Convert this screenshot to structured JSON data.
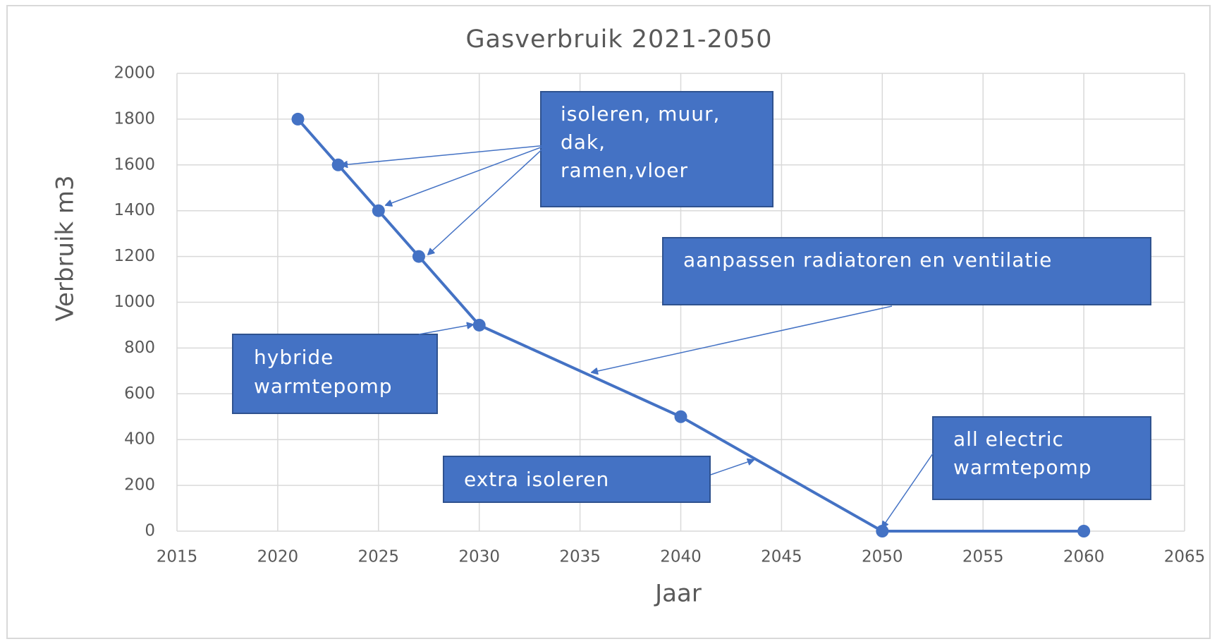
{
  "chart_data": {
    "type": "line",
    "title": "Gasverbruik 2021-2050",
    "x_label": "Jaar",
    "y_label": "Verbruik m3",
    "series": [
      {
        "name": "Verbruik",
        "color": "#4472c4",
        "x": [
          2021,
          2023,
          2025,
          2027,
          2030,
          2040,
          2050,
          2060
        ],
        "values": [
          1800,
          1600,
          1400,
          1200,
          900,
          500,
          0,
          0
        ]
      }
    ],
    "xlim": [
      2015,
      2065
    ],
    "xticks": [
      2015,
      2020,
      2025,
      2030,
      2035,
      2040,
      2045,
      2050,
      2055,
      2060,
      2065
    ],
    "ylim": [
      0,
      2000
    ],
    "yticks": [
      0,
      200,
      400,
      600,
      800,
      1000,
      1200,
      1400,
      1600,
      1800,
      2000
    ],
    "grid": true,
    "annotations": [
      {
        "lines": [
          "isoleren, muur,",
          "dak,",
          "ramen,vloer"
        ]
      },
      {
        "lines": [
          "aanpassen radiatoren en ventilatie"
        ]
      },
      {
        "lines": [
          "hybride",
          "warmtepomp"
        ]
      },
      {
        "lines": [
          "extra isoleren"
        ]
      },
      {
        "lines": [
          "all electric",
          "warmtepomp"
        ]
      }
    ]
  }
}
